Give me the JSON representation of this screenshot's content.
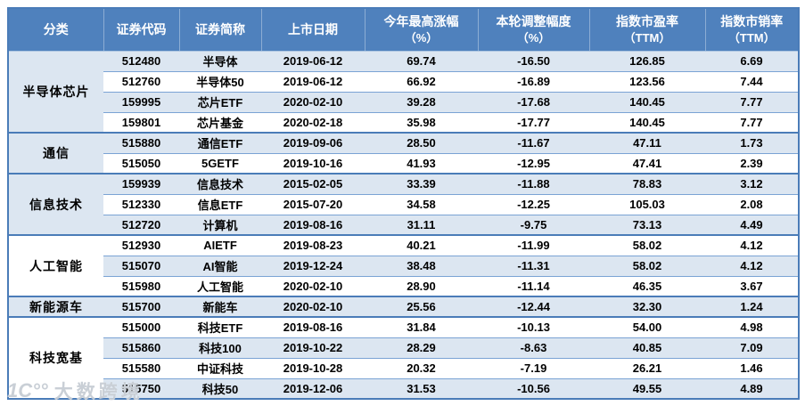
{
  "chart_data": {
    "type": "table",
    "title": "",
    "columns": [
      {
        "line1": "分类",
        "line2": ""
      },
      {
        "line1": "证券代码",
        "line2": ""
      },
      {
        "line1": "证券简称",
        "line2": ""
      },
      {
        "line1": "上市日期",
        "line2": ""
      },
      {
        "line1": "今年最高涨幅",
        "line2": "（%）"
      },
      {
        "line1": "本轮调整幅度",
        "line2": "（%）"
      },
      {
        "line1": "指数市盈率",
        "line2": "（TTM）"
      },
      {
        "line1": "指数市销率",
        "line2": "（TTM）"
      }
    ],
    "column_keys": [
      "category",
      "code",
      "name",
      "list_date",
      "ytd_max_gain_pct",
      "current_drawdown_pct",
      "index_pe_ttm",
      "index_ps_ttm"
    ],
    "groups": [
      {
        "category": "半导体芯片",
        "rows": [
          [
            "512480",
            "半导体",
            "2019-06-12",
            "69.74",
            "-16.50",
            "126.85",
            "6.69"
          ],
          [
            "512760",
            "半导体50",
            "2019-06-12",
            "66.92",
            "-16.89",
            "123.56",
            "7.44"
          ],
          [
            "159995",
            "芯片ETF",
            "2020-02-10",
            "39.28",
            "-17.68",
            "140.45",
            "7.77"
          ],
          [
            "159801",
            "芯片基金",
            "2020-02-18",
            "35.98",
            "-17.77",
            "140.45",
            "7.77"
          ]
        ]
      },
      {
        "category": "通信",
        "rows": [
          [
            "515880",
            "通信ETF",
            "2019-09-06",
            "28.50",
            "-11.67",
            "47.11",
            "1.73"
          ],
          [
            "515050",
            "5GETF",
            "2019-10-16",
            "41.93",
            "-12.95",
            "47.41",
            "2.39"
          ]
        ]
      },
      {
        "category": "信息技术",
        "rows": [
          [
            "159939",
            "信息技术",
            "2015-02-05",
            "33.39",
            "-11.88",
            "78.83",
            "3.12"
          ],
          [
            "512330",
            "信息ETF",
            "2015-07-20",
            "34.58",
            "-12.25",
            "105.03",
            "2.08"
          ],
          [
            "512720",
            "计算机",
            "2019-08-16",
            "31.11",
            "-9.75",
            "73.13",
            "4.49"
          ]
        ]
      },
      {
        "category": "人工智能",
        "rows": [
          [
            "512930",
            "AIETF",
            "2019-08-23",
            "40.21",
            "-11.99",
            "58.02",
            "4.12"
          ],
          [
            "515070",
            "AI智能",
            "2019-12-24",
            "38.48",
            "-11.31",
            "58.02",
            "4.12"
          ],
          [
            "515980",
            "人工智能",
            "2020-02-10",
            "28.90",
            "-11.14",
            "46.35",
            "3.67"
          ]
        ]
      },
      {
        "category": "新能源车",
        "rows": [
          [
            "515700",
            "新能车",
            "2020-02-10",
            "25.56",
            "-12.44",
            "32.30",
            "1.24"
          ]
        ]
      },
      {
        "category": "科技宽基",
        "rows": [
          [
            "515000",
            "科技ETF",
            "2019-08-16",
            "31.84",
            "-10.13",
            "54.00",
            "4.98"
          ],
          [
            "515860",
            "科技100",
            "2019-10-22",
            "28.29",
            "-8.63",
            "40.85",
            "7.09"
          ],
          [
            "515580",
            "中证科技",
            "2019-10-28",
            "20.32",
            "-7.19",
            "26.21",
            "1.46"
          ],
          [
            "515750",
            "科技50",
            "2019-12-06",
            "31.53",
            "-10.56",
            "49.55",
            "4.89"
          ]
        ]
      }
    ]
  },
  "watermark": {
    "logo": "1C°°",
    "text": "大数跨境"
  },
  "colors": {
    "header_bg": "#4f81bd",
    "row_stripe": "#dce6f1",
    "row_plain": "#ffffff",
    "border_thick": "#4a7cb8",
    "border_thin": "#7aa3d4",
    "header_text": "#ffffff",
    "cell_text": "#000000",
    "watermark_text": "#c6ccd4"
  }
}
